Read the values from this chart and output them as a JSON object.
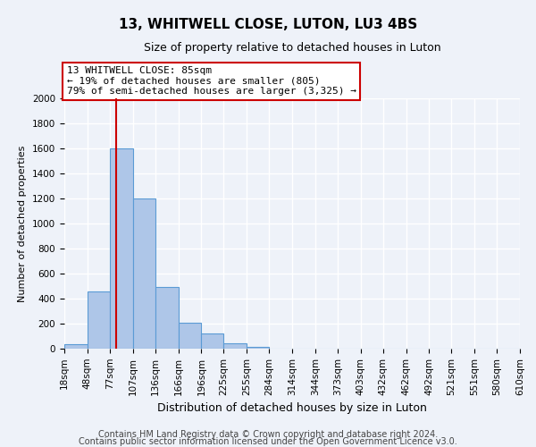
{
  "title": "13, WHITWELL CLOSE, LUTON, LU3 4BS",
  "subtitle": "Size of property relative to detached houses in Luton",
  "xlabel": "Distribution of detached houses by size in Luton",
  "ylabel": "Number of detached properties",
  "bin_labels": [
    "18sqm",
    "48sqm",
    "77sqm",
    "107sqm",
    "136sqm",
    "166sqm",
    "196sqm",
    "225sqm",
    "255sqm",
    "284sqm",
    "314sqm",
    "344sqm",
    "373sqm",
    "403sqm",
    "432sqm",
    "462sqm",
    "492sqm",
    "521sqm",
    "551sqm",
    "580sqm",
    "610sqm"
  ],
  "bar_heights": [
    35,
    460,
    1600,
    1200,
    490,
    210,
    120,
    45,
    15,
    0,
    0,
    0,
    0,
    0,
    0,
    0,
    0,
    0,
    0,
    0
  ],
  "bar_color": "#aec6e8",
  "bar_edge_color": "#5b9bd5",
  "vline_x": 85,
  "vline_color": "#cc0000",
  "ylim": [
    0,
    2000
  ],
  "yticks": [
    0,
    200,
    400,
    600,
    800,
    1000,
    1200,
    1400,
    1600,
    1800,
    2000
  ],
  "bin_edges": [
    18,
    48,
    77,
    107,
    136,
    166,
    196,
    225,
    255,
    284,
    314,
    344,
    373,
    403,
    432,
    462,
    492,
    521,
    551,
    580,
    610
  ],
  "annotation_text": "13 WHITWELL CLOSE: 85sqm\n← 19% of detached houses are smaller (805)\n79% of semi-detached houses are larger (3,325) →",
  "annotation_box_color": "#ffffff",
  "annotation_box_edge": "#cc0000",
  "footer1": "Contains HM Land Registry data © Crown copyright and database right 2024.",
  "footer2": "Contains public sector information licensed under the Open Government Licence v3.0.",
  "bg_color": "#eef2f9",
  "grid_color": "#ffffff",
  "title_fontsize": 11,
  "subtitle_fontsize": 9,
  "ylabel_fontsize": 8,
  "xlabel_fontsize": 9,
  "tick_fontsize": 7.5,
  "footer_fontsize": 7,
  "annot_fontsize": 8
}
